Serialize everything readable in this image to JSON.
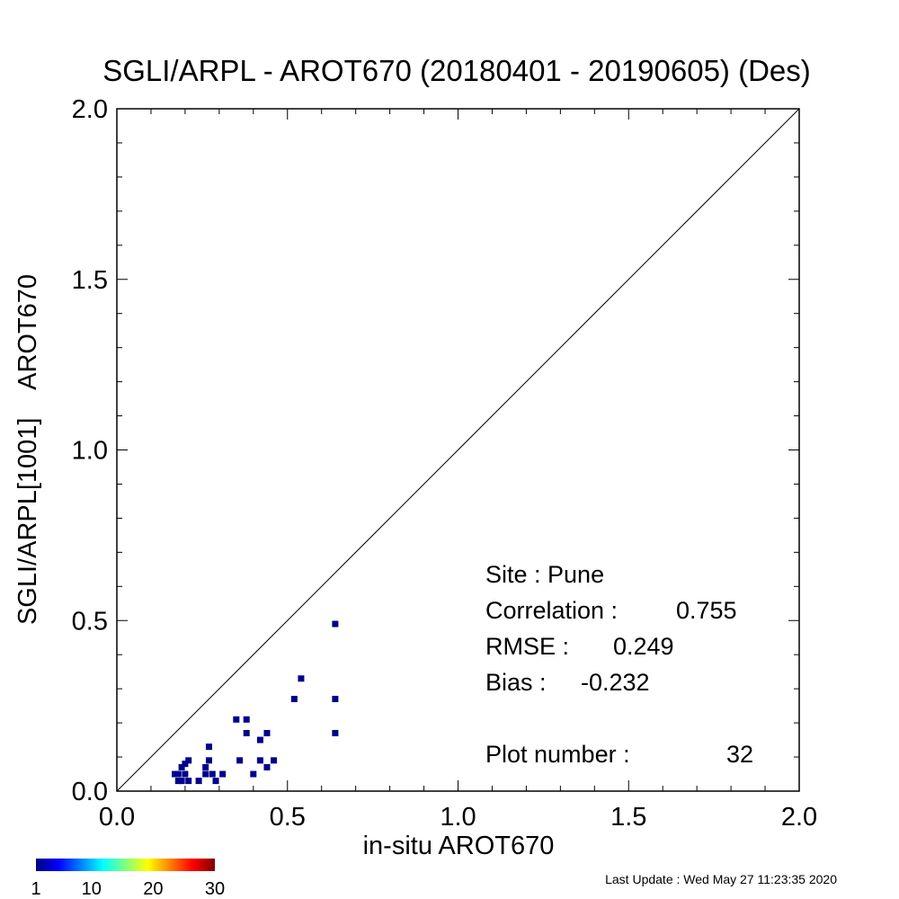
{
  "chart_data": {
    "type": "scatter",
    "title": "SGLI/ARPL - AROT670 (20180401 - 20190605) (Des)",
    "xlabel": "in-situ AROT670",
    "ylabel": "SGLI/ARPL[1001]    AROT670",
    "xlim": [
      0.0,
      2.0
    ],
    "ylim": [
      0.0,
      2.0
    ],
    "x_ticks": [
      "0.0",
      "0.5",
      "1.0",
      "1.5",
      "2.0"
    ],
    "y_ticks": [
      "0.0",
      "0.5",
      "1.0",
      "1.5",
      "2.0"
    ],
    "reference_line": "y = x",
    "grid": false,
    "points": [
      {
        "x": 0.17,
        "y": 0.05
      },
      {
        "x": 0.18,
        "y": 0.03
      },
      {
        "x": 0.18,
        "y": 0.05
      },
      {
        "x": 0.19,
        "y": 0.03
      },
      {
        "x": 0.19,
        "y": 0.07
      },
      {
        "x": 0.2,
        "y": 0.05
      },
      {
        "x": 0.2,
        "y": 0.08
      },
      {
        "x": 0.21,
        "y": 0.03
      },
      {
        "x": 0.21,
        "y": 0.09
      },
      {
        "x": 0.24,
        "y": 0.03
      },
      {
        "x": 0.26,
        "y": 0.05
      },
      {
        "x": 0.26,
        "y": 0.07
      },
      {
        "x": 0.27,
        "y": 0.09
      },
      {
        "x": 0.27,
        "y": 0.13
      },
      {
        "x": 0.28,
        "y": 0.05
      },
      {
        "x": 0.29,
        "y": 0.03
      },
      {
        "x": 0.31,
        "y": 0.05
      },
      {
        "x": 0.35,
        "y": 0.21
      },
      {
        "x": 0.36,
        "y": 0.09
      },
      {
        "x": 0.38,
        "y": 0.17
      },
      {
        "x": 0.38,
        "y": 0.21
      },
      {
        "x": 0.4,
        "y": 0.05
      },
      {
        "x": 0.42,
        "y": 0.09
      },
      {
        "x": 0.42,
        "y": 0.15
      },
      {
        "x": 0.44,
        "y": 0.07
      },
      {
        "x": 0.44,
        "y": 0.17
      },
      {
        "x": 0.46,
        "y": 0.09
      },
      {
        "x": 0.52,
        "y": 0.27
      },
      {
        "x": 0.54,
        "y": 0.33
      },
      {
        "x": 0.64,
        "y": 0.17
      },
      {
        "x": 0.64,
        "y": 0.27
      },
      {
        "x": 0.64,
        "y": 0.49
      }
    ],
    "point_color": "#00008b",
    "colorbar": {
      "ticks": [
        "1",
        "10",
        "20",
        "30"
      ],
      "min": 1,
      "max": 30,
      "colors": [
        "#00007f",
        "#0000ff",
        "#007fff",
        "#00ffff",
        "#7fff7f",
        "#ffff00",
        "#ff7f00",
        "#ff0000",
        "#7f0000"
      ]
    },
    "stats": {
      "site_label": "Site : Pune",
      "correlation_label": "Correlation :",
      "correlation_value": "0.755",
      "rmse_label": "RMSE :",
      "rmse_value": "0.249",
      "bias_label": "Bias :",
      "bias_value": "-0.232",
      "plot_number_label": "Plot number :",
      "plot_number_value": "32"
    }
  },
  "footer": {
    "last_update": "Last Update : Wed May 27 11:23:35 2020"
  }
}
